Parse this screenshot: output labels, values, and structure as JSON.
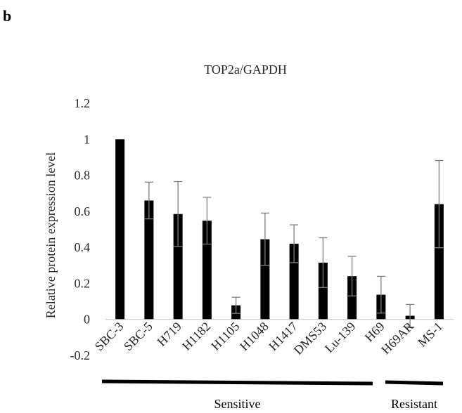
{
  "panel_label": "b",
  "chart_data": {
    "type": "bar",
    "title": "TOP2a/GAPDH",
    "xlabel": "",
    "ylabel": "Relative protein expression level",
    "ylim": [
      -0.2,
      1.2
    ],
    "yticks": [
      -0.2,
      0,
      0.2,
      0.4,
      0.6,
      0.8,
      1,
      1.2
    ],
    "ytick_labels": [
      "-0.2",
      "0",
      "0.2",
      "0.4",
      "0.6",
      "0.8",
      "1",
      "1.2"
    ],
    "grid": false,
    "categories": [
      "SBC-3",
      "SBC-5",
      "H719",
      "H1182",
      "H1105",
      "H1048",
      "H1417",
      "DMS53",
      "Lu-139",
      "H69",
      "H69AR",
      "MS-1"
    ],
    "values": [
      1.0,
      0.66,
      0.585,
      0.548,
      0.078,
      0.445,
      0.42,
      0.315,
      0.24,
      0.137,
      0.02,
      0.64
    ],
    "error": [
      0.0,
      0.102,
      0.18,
      0.13,
      0.045,
      0.145,
      0.105,
      0.138,
      0.11,
      0.102,
      0.063,
      0.242
    ],
    "bar_color": "#000000",
    "groups": [
      {
        "label": "Sensitive",
        "from": 0,
        "to": 9
      },
      {
        "label": "Resistant",
        "from": 10,
        "to": 11
      }
    ]
  }
}
